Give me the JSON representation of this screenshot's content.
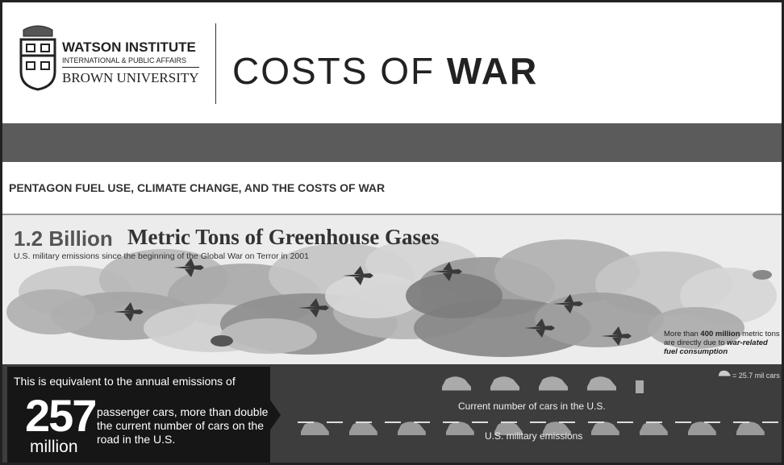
{
  "header": {
    "logo": {
      "line1": "WATSON INSTITUTE",
      "line2": "INTERNATIONAL & PUBLIC AFFAIRS",
      "line3": "BROWN UNIVERSITY"
    },
    "title_light": "COSTS OF",
    "title_bold": "WAR"
  },
  "article": {
    "title": "PENTAGON FUEL USE, CLIMATE CHANGE, AND THE COSTS OF WAR"
  },
  "infographic": {
    "headline_number": "1.2 Billion",
    "headline_text": "Metric Tons of Greenhouse Gases",
    "subtitle": "U.S. military emissions since the beginning of the Global War on Terror in 2001",
    "note": {
      "prefix": "More than",
      "highlight": "400 million",
      "middle": "metric tons are directly due to",
      "emphasis": "war-related fuel consumption"
    },
    "equivalent": {
      "intro": "This is equivalent to the annual emissions of",
      "number": "257",
      "unit": "million",
      "description": "passenger cars, more than double the current number of cars on the road in the U.S."
    },
    "legend": "= 25.7 mil cars",
    "row1_label": "Current number of cars in the U.S.",
    "row2_label": "U.S. military emissions"
  }
}
